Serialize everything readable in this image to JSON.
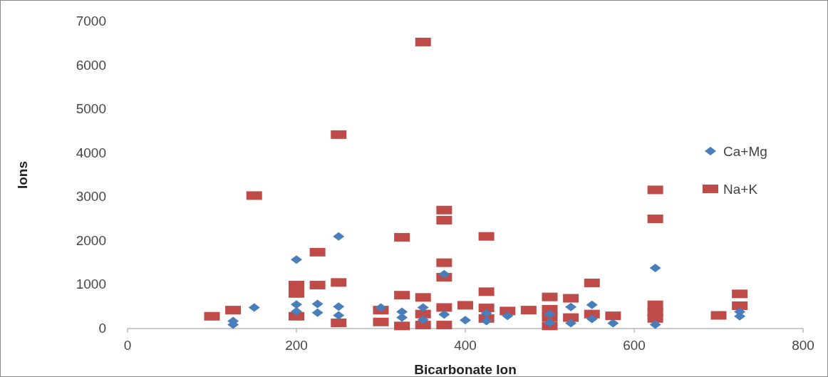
{
  "chart_data": {
    "type": "scatter",
    "xlabel": "Bicarbonate Ion",
    "ylabel": "Ions",
    "xlim": [
      0,
      800
    ],
    "xticks": [
      0,
      200,
      400,
      600,
      800
    ],
    "ylim": [
      0,
      7000
    ],
    "yticks": [
      0,
      1000,
      2000,
      3000,
      4000,
      5000,
      6000,
      7000
    ],
    "legend": "right",
    "grid": false,
    "series": [
      {
        "name": "Ca+Mg",
        "color": "#4a7ebb",
        "marker": "diamond",
        "x": [
          125,
          125,
          150,
          200,
          200,
          200,
          225,
          225,
          250,
          250,
          250,
          300,
          325,
          325,
          350,
          350,
          375,
          375,
          400,
          425,
          425,
          450,
          500,
          500,
          525,
          525,
          550,
          550,
          575,
          625,
          625,
          725,
          725
        ],
        "values": [
          170,
          90,
          480,
          1570,
          550,
          390,
          560,
          360,
          2100,
          500,
          300,
          480,
          380,
          250,
          480,
          200,
          1240,
          320,
          190,
          350,
          170,
          290,
          330,
          130,
          490,
          120,
          540,
          220,
          120,
          1380,
          90,
          380,
          280
        ]
      },
      {
        "name": "Na+K",
        "color": "#be4b48",
        "marker": "square",
        "x": [
          100,
          125,
          150,
          200,
          200,
          200,
          225,
          225,
          250,
          250,
          250,
          300,
          300,
          325,
          325,
          325,
          350,
          350,
          350,
          350,
          375,
          375,
          375,
          375,
          375,
          375,
          400,
          425,
          425,
          425,
          425,
          450,
          475,
          500,
          500,
          500,
          500,
          525,
          525,
          550,
          550,
          575,
          625,
          625,
          625,
          625,
          625,
          700,
          725,
          725
        ],
        "values": [
          280,
          420,
          3030,
          990,
          800,
          280,
          1740,
          990,
          4420,
          1050,
          130,
          420,
          150,
          2080,
          760,
          60,
          6530,
          710,
          330,
          80,
          2700,
          2470,
          1500,
          1170,
          480,
          80,
          530,
          2100,
          840,
          470,
          230,
          400,
          420,
          720,
          440,
          260,
          60,
          690,
          250,
          1040,
          330,
          290,
          3160,
          2500,
          540,
          370,
          230,
          300,
          790,
          520
        ]
      }
    ]
  }
}
